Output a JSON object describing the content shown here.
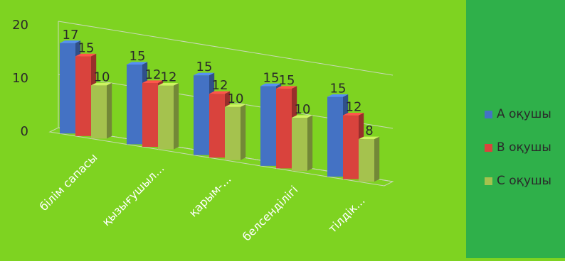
{
  "chart_data": {
    "type": "bar",
    "categories": [
      "білім сапасы",
      "қызығушыл...",
      "қарым-...",
      "белсенділігі",
      "тілдік..."
    ],
    "series": [
      {
        "name": "А оқушы",
        "values": [
          17,
          15,
          15,
          15,
          15
        ],
        "color": "#4472c4"
      },
      {
        "name": "В оқушы",
        "values": [
          15,
          12,
          12,
          15,
          12
        ],
        "color": "#d9433d"
      },
      {
        "name": "С оқушы",
        "values": [
          10,
          12,
          10,
          10,
          8
        ],
        "color": "#a5c24e"
      }
    ],
    "yticks": [
      "0",
      "10",
      "20"
    ],
    "ylim": [
      0,
      20
    ],
    "grid": true,
    "legend_position": "right"
  }
}
